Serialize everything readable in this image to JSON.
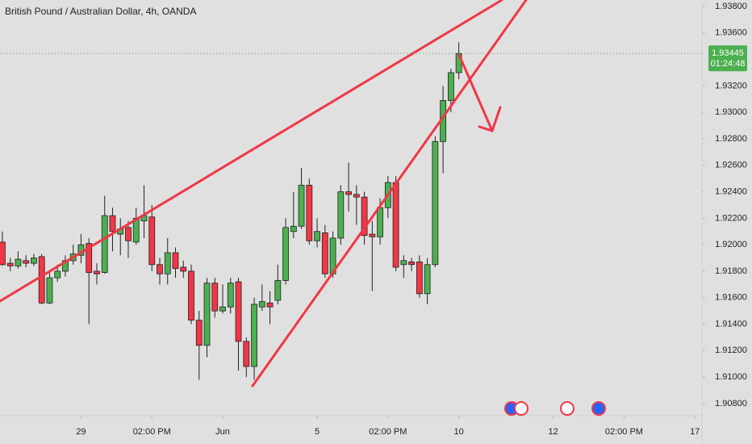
{
  "chart_data": {
    "type": "candlestick",
    "title": "British Pound / Australian Dollar, 4h, OANDA",
    "series": [
      {
        "up_color": "#4caf50",
        "down_color": "#f23645",
        "open": [
          1.9202,
          1.9186,
          1.9184,
          1.9188,
          1.9186,
          1.9191,
          1.9156,
          1.9175,
          1.918,
          1.9188,
          1.9192,
          1.9201,
          1.918,
          1.9179,
          1.9222,
          1.9208,
          1.9213,
          1.9202,
          1.9218,
          1.9221,
          1.9185,
          1.9178,
          1.9194,
          1.9183,
          1.918,
          1.9143,
          1.9124,
          1.9171,
          1.915,
          1.9153,
          1.9172,
          1.9127,
          1.9108,
          1.9153,
          1.9156,
          1.9158,
          1.9173,
          1.921,
          1.9214,
          1.9245,
          1.9203,
          1.9209,
          1.9178,
          1.9205,
          1.924,
          1.9238,
          1.9236,
          1.9208,
          1.9206,
          1.9228,
          1.9247,
          1.9185,
          1.9187,
          1.9187,
          1.9163,
          1.9185,
          1.9278,
          1.9309,
          1.933
        ],
        "high": [
          1.921,
          1.919,
          1.9195,
          1.9192,
          1.9193,
          1.9193,
          1.918,
          1.9185,
          1.9192,
          1.92,
          1.9208,
          1.9205,
          1.9186,
          1.9237,
          1.9228,
          1.922,
          1.9218,
          1.9228,
          1.9245,
          1.923,
          1.919,
          1.9205,
          1.9198,
          1.9188,
          1.9185,
          1.915,
          1.9175,
          1.9175,
          1.917,
          1.9175,
          1.9175,
          1.913,
          1.916,
          1.917,
          1.9165,
          1.9185,
          1.922,
          1.924,
          1.9258,
          1.925,
          1.922,
          1.9215,
          1.921,
          1.9245,
          1.9262,
          1.9245,
          1.924,
          1.9218,
          1.9235,
          1.9252,
          1.9252,
          1.9192,
          1.919,
          1.9192,
          1.919,
          1.9282,
          1.932,
          1.9333,
          1.9353
        ],
        "low": [
          1.9184,
          1.918,
          1.9182,
          1.9183,
          1.9184,
          1.9155,
          1.9155,
          1.9172,
          1.9176,
          1.9185,
          1.9186,
          1.914,
          1.917,
          1.9178,
          1.9195,
          1.9192,
          1.919,
          1.92,
          1.9205,
          1.918,
          1.917,
          1.917,
          1.9175,
          1.9175,
          1.914,
          1.9098,
          1.9115,
          1.9145,
          1.9148,
          1.9148,
          1.9105,
          1.91,
          1.9098,
          1.915,
          1.914,
          1.9155,
          1.917,
          1.9205,
          1.9212,
          1.92,
          1.9198,
          1.9175,
          1.9175,
          1.92,
          1.9225,
          1.9215,
          1.92,
          1.9165,
          1.92,
          1.922,
          1.918,
          1.9175,
          1.918,
          1.916,
          1.9155,
          1.9183,
          1.9254,
          1.93,
          1.9325
        ],
        "close": [
          1.9185,
          1.9184,
          1.9189,
          1.9186,
          1.919,
          1.9156,
          1.9175,
          1.918,
          1.9188,
          1.9193,
          1.92,
          1.9179,
          1.9178,
          1.9222,
          1.921,
          1.9212,
          1.9203,
          1.922,
          1.9222,
          1.9185,
          1.9178,
          1.9194,
          1.9182,
          1.918,
          1.9143,
          1.9124,
          1.9171,
          1.915,
          1.9153,
          1.9171,
          1.9127,
          1.9108,
          1.9155,
          1.9157,
          1.9153,
          1.9173,
          1.9213,
          1.9214,
          1.9245,
          1.9203,
          1.921,
          1.9178,
          1.9205,
          1.924,
          1.9238,
          1.9236,
          1.9207,
          1.9206,
          1.9228,
          1.9247,
          1.9183,
          1.9188,
          1.9185,
          1.9163,
          1.9185,
          1.9278,
          1.9309,
          1.933,
          1.93445
        ]
      }
    ],
    "last_price": 1.93445,
    "countdown": "01:24:48",
    "last_price_color": "#4caf50",
    "xlim": [
      -0.3,
      88.9
    ],
    "xticks": [
      {
        "value": 10,
        "label": "29"
      },
      {
        "value": 19,
        "label": "02:00 PM"
      },
      {
        "value": 28,
        "label": "Jun"
      },
      {
        "value": 40,
        "label": "5"
      },
      {
        "value": 49,
        "label": "02:00 PM"
      },
      {
        "value": 58,
        "label": "10"
      },
      {
        "value": 70,
        "label": "12"
      },
      {
        "value": 79,
        "label": "02:00 PM"
      },
      {
        "value": 88,
        "label": "17"
      }
    ],
    "ylim": [
      1.90708,
      1.93849
    ],
    "yticks": [
      {
        "value": 1.938,
        "label": "1.93800"
      },
      {
        "value": 1.936,
        "label": "1.93600"
      },
      {
        "value": 1.932,
        "label": "1.93200"
      },
      {
        "value": 1.93,
        "label": "1.93000"
      },
      {
        "value": 1.928,
        "label": "1.92800"
      },
      {
        "value": 1.926,
        "label": "1.92600"
      },
      {
        "value": 1.924,
        "label": "1.92400"
      },
      {
        "value": 1.922,
        "label": "1.92200"
      },
      {
        "value": 1.92,
        "label": "1.92000"
      },
      {
        "value": 1.918,
        "label": "1.91800"
      },
      {
        "value": 1.916,
        "label": "1.91600"
      },
      {
        "value": 1.914,
        "label": "1.91400"
      },
      {
        "value": 1.912,
        "label": "1.91200"
      },
      {
        "value": 1.91,
        "label": "1.91000"
      },
      {
        "value": 1.908,
        "label": "1.90800"
      }
    ],
    "grid": false
  }
}
